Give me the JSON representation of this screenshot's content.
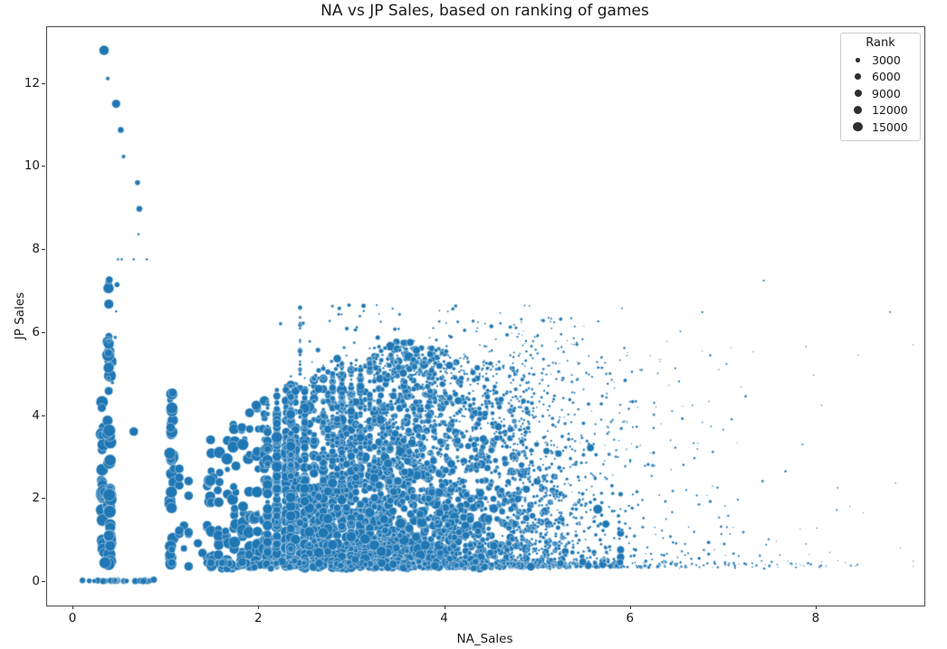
{
  "chart_data": {
    "type": "scatter",
    "title": "NA vs JP Sales, based on ranking of games",
    "xlabel": "NA_Sales",
    "ylabel": "JP Sales",
    "xlim": [
      -0.283,
      9.16
    ],
    "ylim": [
      -0.57,
      13.37
    ],
    "xticks": [
      0,
      2,
      4,
      6,
      8
    ],
    "yticks": [
      0,
      2,
      4,
      6,
      8,
      10,
      12
    ],
    "grid": false,
    "point_color": "#1f77b4",
    "point_edge_color": "rgba(255,255,255,0.55)",
    "frame_color": "#4a4a4a",
    "size_encoding": "marker area proportional to Rank",
    "n_points_estimate": 4900,
    "legend": {
      "position": "upper right",
      "title": "Rank",
      "marker_color": "#2f2f2f",
      "entries": [
        {
          "label": "3000",
          "d": 4.7
        },
        {
          "label": "6000",
          "d": 6.7
        },
        {
          "label": "9000",
          "d": 8.0
        },
        {
          "label": "12000",
          "d": 9.3
        },
        {
          "label": "15000",
          "d": 10.3
        }
      ]
    },
    "seed": 1337,
    "featured_points": [
      [
        0.34,
        12.79,
        11
      ],
      [
        0.38,
        12.11,
        4.5
      ],
      [
        0.47,
        11.5,
        9.5
      ],
      [
        0.52,
        10.87,
        7
      ],
      [
        0.55,
        10.23,
        4.5
      ],
      [
        0.7,
        9.6,
        6
      ],
      [
        0.72,
        8.97,
        7
      ],
      [
        0.71,
        8.36,
        3
      ],
      [
        0.49,
        7.75,
        2.5
      ],
      [
        0.53,
        7.75,
        2.5
      ],
      [
        0.66,
        7.75,
        2.5
      ],
      [
        0.8,
        7.75,
        2.5
      ],
      [
        0.48,
        7.14,
        6
      ],
      [
        0.47,
        6.5,
        2.5
      ],
      [
        0.46,
        5.87,
        4
      ],
      [
        0.39,
        5.78,
        4.5
      ],
      [
        0.46,
        5.24,
        2.5
      ],
      [
        0.39,
        4.89,
        5
      ],
      [
        0.43,
        4.78,
        4
      ],
      [
        0.39,
        4.58,
        9.5
      ],
      [
        1.08,
        4.54,
        9.5
      ],
      [
        0.66,
        3.6,
        10
      ],
      [
        2.24,
        6.2,
        4
      ],
      [
        7.44,
        7.24,
        2.2
      ],
      [
        6.78,
        6.48,
        2.2
      ],
      [
        8.8,
        6.48,
        2.0
      ],
      [
        0.35,
        0.44,
        13
      ],
      [
        1.07,
        0.76,
        8
      ],
      [
        1.07,
        0.44,
        9
      ],
      [
        1.49,
        0.44,
        9
      ],
      [
        1.61,
        0.44,
        8
      ]
    ],
    "clusters": [
      {
        "type": "blob",
        "count": 26,
        "na": {
          "n": [
            0.325,
            0.01,
            0.3,
            0.35
          ]
        },
        "jp": {
          "p": [
            0.4,
            1.25
          ],
          "mx": [
            [
              0,
              4.7
            ]
          ]
        },
        "size": [
          14.0,
          0,
          0.45,
          2.3,
          5.5,
          13.5
        ]
      },
      {
        "type": "blob",
        "count": 46,
        "na": {
          "n": [
            0.398,
            0.01,
            0.37,
            0.43
          ]
        },
        "jp": {
          "p": [
            0.4,
            1.6
          ],
          "mx": [
            [
              0,
              7.3
            ]
          ]
        },
        "size": [
          14.2,
          0,
          0.42,
          2.3,
          5.5,
          13.8
        ]
      },
      {
        "type": "blob",
        "count": 30,
        "na": {
          "n": [
            1.065,
            0.012,
            1.02,
            1.11
          ]
        },
        "jp": {
          "p": [
            0.38,
            1.3
          ],
          "mx": [
            [
              0,
              4.6
            ]
          ]
        },
        "size": [
          13.5,
          0,
          0.5,
          2.4,
          5,
          13
        ]
      },
      {
        "type": "blob",
        "count": 20,
        "na": {
          "u": [
            1.12,
            1.48
          ]
        },
        "q": 0.05,
        "jp": {
          "p": [
            0.35,
            1.3
          ],
          "mx": [
            [
              0,
              2.8
            ]
          ]
        },
        "size": [
          12.5,
          0.5,
          0.5,
          2.2,
          4,
          10
        ]
      },
      {
        "type": "strip_set",
        "jitter": 0.012,
        "jp_min": 0.33,
        "strips": [
          [
            1.49,
            16,
            3.9
          ],
          [
            1.57,
            12,
            3.6
          ],
          [
            1.66,
            12,
            3.4
          ],
          [
            1.75,
            15,
            3.9
          ],
          [
            1.83,
            17,
            4.05
          ],
          [
            1.91,
            15,
            4.1
          ],
          [
            1.99,
            19,
            4.25
          ],
          [
            2.07,
            19,
            4.35
          ]
        ],
        "size": [
          13.2,
          0.8,
          0.55,
          2.3,
          4,
          13
        ]
      },
      {
        "type": "blob",
        "count": 720,
        "na": {
          "u": [
            2.1,
            3.3
          ]
        },
        "q": 0.1,
        "jp": {
          "p": [
            0.33,
            1.2
          ],
          "mx": [
            [
              2.1,
              4.6
            ],
            [
              3.3,
              5.3
            ]
          ]
        },
        "size": [
          13.2,
          1.0,
          0.7,
          2.3,
          3.5,
          12.5
        ]
      },
      {
        "type": "blob",
        "count": 2450,
        "na": {
          "n": [
            3.75,
            0.78,
            2.35,
            5.9
          ]
        },
        "q_below": [
          3.3,
          0.05
        ],
        "jp": {
          "p": [
            0.32,
            1.22
          ],
          "mx": [
            [
              2.3,
              4.9
            ],
            [
              3.0,
              5.5
            ],
            [
              3.6,
              5.85
            ],
            [
              4.3,
              5.4
            ],
            [
              5.0,
              5.0
            ],
            [
              5.9,
              4.6
            ]
          ]
        },
        "size": [
          13.5,
          1.35,
          0.9,
          2.2,
          2.2,
          11.5
        ]
      },
      {
        "type": "blob",
        "count": 850,
        "na": {
          "e": [
            4.7,
            0.9,
            4.7,
            9.05
          ]
        },
        "jp": {
          "p": [
            0.33,
            2.0
          ],
          "mx": [
            [
              4.7,
              6.4
            ],
            [
              9.0,
              6.0
            ]
          ]
        },
        "size": [
          6.2,
          0.5,
          0.22,
          0.9,
          1.2,
          4.2
        ]
      },
      {
        "type": "blob",
        "count": 130,
        "na": {
          "n": [
            3.7,
            1.0,
            2.45,
            6.3
          ]
        },
        "jp": {
          "u": [
            4.8,
            6.65
          ]
        },
        "size": [
          7.5,
          0.8,
          0.3,
          1.3,
          1.8,
          5.5
        ]
      },
      {
        "type": "blob",
        "count": 42,
        "na": {
          "n": [
            3.58,
            0.2,
            3.1,
            4.1
          ]
        },
        "jp": {
          "n": [
            5.35,
            0.22,
            4.9,
            5.75
          ]
        },
        "size": [
          11.5,
          0.9,
          0.4,
          2.0,
          4.5,
          10
        ]
      },
      {
        "type": "blob",
        "count": 260,
        "na": {
          "u": [
            1.55,
            5.9
          ]
        },
        "jp": {
          "n": [
            0.4,
            0.05,
            0.3,
            0.52
          ]
        },
        "size": [
          11.8,
          1.5,
          0,
          2.0,
          2,
          9.5
        ]
      },
      {
        "type": "blob",
        "count": 70,
        "na": {
          "u": [
            5.9,
            8.45
          ]
        },
        "jp": {
          "n": [
            0.4,
            0.05,
            0.3,
            0.52
          ]
        },
        "size": [
          5.0,
          0.45,
          0,
          0.7,
          1.2,
          3
        ]
      },
      {
        "type": "blob",
        "count": 26,
        "na": {
          "u": [
            0.08,
            0.92
          ]
        },
        "jp": {
          "n": [
            0.0,
            0.012,
            -0.03,
            0.04
          ]
        },
        "size": [
          6.5,
          0,
          0,
          1.5,
          2.5,
          7.5
        ]
      }
    ]
  }
}
